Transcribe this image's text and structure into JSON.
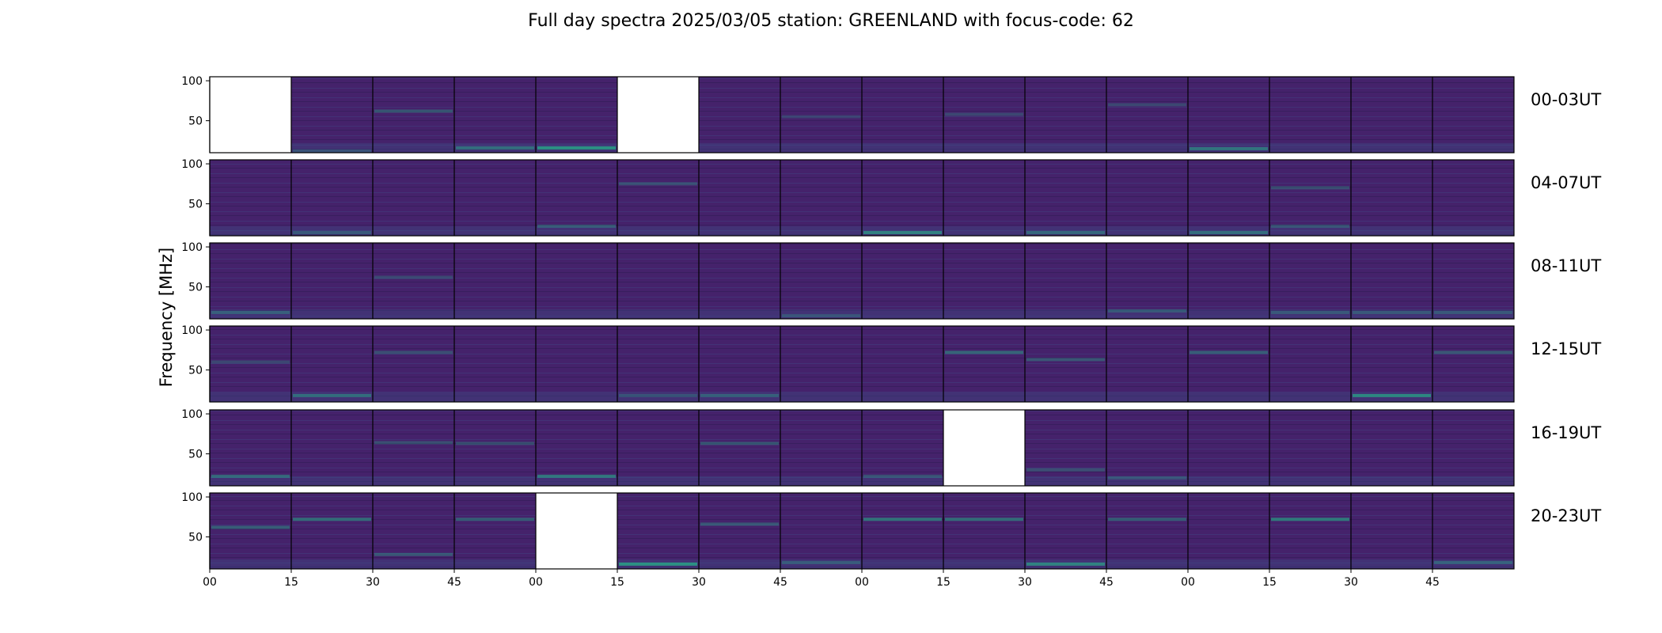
{
  "chart_data": {
    "type": "heatmap",
    "title": "Full day spectra 2025/03/05 station: GREENLAND with focus-code: 62",
    "ylabel": "Frequency [MHz]",
    "xlabel": "",
    "ylim": [
      10,
      105
    ],
    "y_ticks": [
      50,
      100
    ],
    "x_ticks": [
      "00",
      "15",
      "30",
      "45",
      "00",
      "15",
      "30",
      "45",
      "00",
      "15",
      "30",
      "45",
      "00",
      "15",
      "30",
      "45"
    ],
    "colormap": "viridis",
    "colors": {
      "low": "#45226b",
      "mid": "#3b4f8a",
      "high": "#24b689",
      "axis": "#000000",
      "missing": "#ffffff"
    },
    "rows": [
      {
        "label": "00-03UT",
        "missing_panels": [
          0,
          5
        ],
        "bands": [
          [
            1,
            12,
            0.25
          ],
          [
            2,
            62,
            0.35
          ],
          [
            3,
            16,
            0.45
          ],
          [
            4,
            16,
            0.7
          ],
          [
            7,
            55,
            0.2
          ],
          [
            9,
            58,
            0.25
          ],
          [
            11,
            70,
            0.25
          ],
          [
            12,
            15,
            0.5
          ]
        ]
      },
      {
        "label": "04-07UT",
        "missing_panels": [],
        "bands": [
          [
            1,
            14,
            0.3
          ],
          [
            4,
            22,
            0.35
          ],
          [
            5,
            75,
            0.3
          ],
          [
            8,
            14,
            0.6
          ],
          [
            10,
            14,
            0.4
          ],
          [
            12,
            14,
            0.45
          ],
          [
            13,
            70,
            0.3
          ],
          [
            13,
            22,
            0.3
          ]
        ]
      },
      {
        "label": "08-11UT",
        "missing_panels": [],
        "bands": [
          [
            0,
            18,
            0.35
          ],
          [
            2,
            62,
            0.25
          ],
          [
            7,
            14,
            0.25
          ],
          [
            11,
            20,
            0.3
          ],
          [
            13,
            18,
            0.3
          ],
          [
            14,
            18,
            0.3
          ],
          [
            15,
            18,
            0.3
          ]
        ]
      },
      {
        "label": "12-15UT",
        "missing_panels": [],
        "bands": [
          [
            0,
            60,
            0.25
          ],
          [
            1,
            18,
            0.45
          ],
          [
            2,
            72,
            0.3
          ],
          [
            5,
            18,
            0.25
          ],
          [
            6,
            18,
            0.35
          ],
          [
            9,
            72,
            0.45
          ],
          [
            10,
            63,
            0.35
          ],
          [
            12,
            72,
            0.4
          ],
          [
            14,
            18,
            0.65
          ],
          [
            15,
            72,
            0.35
          ]
        ]
      },
      {
        "label": "16-19UT",
        "missing_panels": [
          9
        ],
        "bands": [
          [
            0,
            22,
            0.45
          ],
          [
            2,
            64,
            0.3
          ],
          [
            3,
            63,
            0.3
          ],
          [
            4,
            22,
            0.55
          ],
          [
            6,
            63,
            0.35
          ],
          [
            8,
            22,
            0.3
          ],
          [
            10,
            30,
            0.3
          ],
          [
            11,
            20,
            0.25
          ]
        ]
      },
      {
        "label": "20-23UT",
        "missing_panels": [
          4
        ],
        "bands": [
          [
            0,
            62,
            0.4
          ],
          [
            1,
            72,
            0.5
          ],
          [
            2,
            28,
            0.35
          ],
          [
            3,
            72,
            0.4
          ],
          [
            5,
            16,
            0.7
          ],
          [
            6,
            66,
            0.35
          ],
          [
            7,
            18,
            0.3
          ],
          [
            8,
            72,
            0.55
          ],
          [
            9,
            72,
            0.5
          ],
          [
            10,
            16,
            0.6
          ],
          [
            11,
            72,
            0.4
          ],
          [
            13,
            72,
            0.6
          ],
          [
            15,
            18,
            0.35
          ]
        ]
      }
    ]
  }
}
